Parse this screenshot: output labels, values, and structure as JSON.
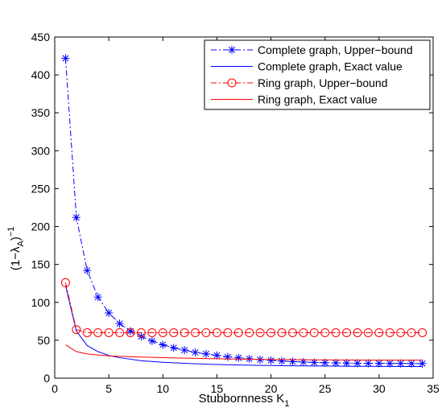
{
  "chart_data": {
    "type": "line",
    "xlabel": "Stubbornness K",
    "xlabel_sub": "1",
    "ylabel": "(1−λ",
    "ylabel_sub": "A",
    "ylabel_close": ")",
    "ylabel_sup": "−1",
    "xlim": [
      0,
      35
    ],
    "ylim": [
      0,
      450
    ],
    "xticks": [
      0,
      5,
      10,
      15,
      20,
      25,
      30,
      35
    ],
    "yticks": [
      0,
      50,
      100,
      150,
      200,
      250,
      300,
      350,
      400,
      450
    ],
    "grid": false,
    "legend_position": "top-right",
    "series": [
      {
        "name": "Complete graph, Upper−bound",
        "color": "#0000ff",
        "line_style": "dashdot",
        "marker": "asterisk",
        "x": [
          1,
          2,
          3,
          4,
          5,
          6,
          7,
          8,
          9,
          10,
          11,
          12,
          13,
          14,
          15,
          16,
          17,
          18,
          19,
          20,
          21,
          22,
          23,
          24,
          25,
          26,
          27,
          28,
          29,
          30,
          31,
          32,
          33,
          34
        ],
        "y": [
          422,
          212,
          142,
          107,
          86,
          72,
          62,
          55,
          49,
          44,
          40,
          37,
          34,
          32,
          30,
          28,
          26.8,
          25.5,
          24.4,
          23.4,
          22.6,
          21.9,
          21.3,
          20.8,
          20.4,
          20.1,
          19.9,
          19.7,
          19.6,
          19.5,
          19.4,
          19.4,
          19.3,
          19.3
        ]
      },
      {
        "name": "Complete graph, Exact value",
        "color": "#0000ff",
        "line_style": "solid",
        "marker": "none",
        "x": [
          1,
          2,
          3,
          4,
          5,
          6,
          7,
          8,
          9,
          10,
          11,
          12,
          13,
          14,
          15,
          16,
          17,
          18,
          19,
          20,
          21,
          22,
          23,
          24,
          25,
          26,
          27,
          28,
          29,
          30,
          31,
          32,
          33,
          34
        ],
        "y": [
          122,
          62,
          43,
          35,
          30,
          27,
          25,
          23,
          22,
          21,
          20.3,
          19.6,
          19,
          18.5,
          18.1,
          17.7,
          17.4,
          17.1,
          16.9,
          16.7,
          16.5,
          16.3,
          16.2,
          16.1,
          16,
          15.9,
          15.8,
          15.7,
          15.6,
          15.5,
          15.5,
          15.4,
          15.4,
          15.3
        ]
      },
      {
        "name": "Ring graph, Upper−bound",
        "color": "#ff0000",
        "line_style": "dashdot",
        "marker": "circle",
        "x": [
          1,
          2,
          3,
          4,
          5,
          6,
          7,
          8,
          9,
          10,
          11,
          12,
          13,
          14,
          15,
          16,
          17,
          18,
          19,
          20,
          21,
          22,
          23,
          24,
          25,
          26,
          27,
          28,
          29,
          30,
          31,
          32,
          33,
          34
        ],
        "y": [
          126,
          64,
          60,
          60,
          60,
          60,
          60,
          60,
          60,
          60,
          60,
          60,
          60,
          60,
          60,
          60,
          60,
          60,
          60,
          60,
          60,
          60,
          60,
          60,
          60,
          60,
          60,
          60,
          60,
          60,
          60,
          60,
          60,
          60
        ]
      },
      {
        "name": "Ring graph, Exact value",
        "color": "#ff0000",
        "line_style": "solid",
        "marker": "none",
        "x": [
          1,
          2,
          3,
          4,
          5,
          6,
          7,
          8,
          9,
          10,
          11,
          12,
          13,
          14,
          15,
          16,
          17,
          18,
          19,
          20,
          21,
          22,
          23,
          24,
          25,
          26,
          27,
          28,
          29,
          30,
          31,
          32,
          33,
          34
        ],
        "y": [
          44,
          35,
          32,
          30.5,
          29.5,
          28.8,
          28.3,
          27.8,
          27.4,
          27,
          26.7,
          26.4,
          26.1,
          25.8,
          25.6,
          25.4,
          25.2,
          25,
          24.8,
          24.6,
          24.5,
          24.4,
          24.3,
          24.2,
          24.1,
          24,
          24,
          23.9,
          23.9,
          23.8,
          23.8,
          23.7,
          23.7,
          23.7
        ]
      }
    ]
  }
}
